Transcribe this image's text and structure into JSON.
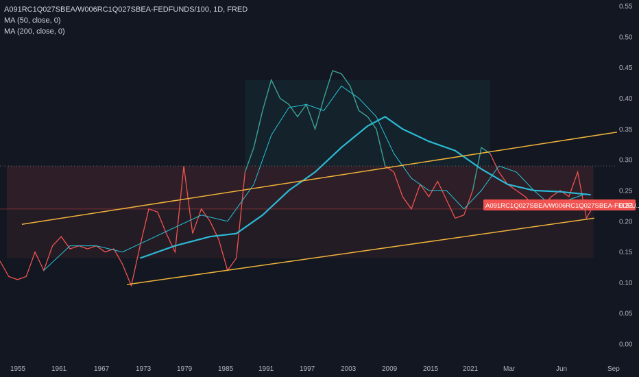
{
  "legend": {
    "symbol": "A091RC1Q027SBEA/W006RC1Q027SBEA-FEDFUNDS/100, 1D, FRED",
    "ma50": "MA (50, close, 0)",
    "ma200": "MA (200, close, 0)"
  },
  "price_label": {
    "name": "A091RC1Q027SBEA/W006RC1Q027SBEA-FEDFU...",
    "value": "0.22"
  },
  "colors": {
    "background": "#131722",
    "series": "#f05350",
    "series_alt": "#26a69a",
    "ma50": "#26c6da",
    "ma200": "#2bbbd6",
    "channel": "#f0b33a",
    "price_label": "#f05350"
  },
  "chart_data": {
    "type": "line",
    "title": "A091RC1Q027SBEA/W006RC1Q027SBEA-FEDFUNDS/100, 1D, FRED",
    "x_ticks": [
      "1955",
      "1961",
      "1967",
      "1973",
      "1979",
      "1985",
      "1991",
      "1997",
      "2003",
      "2009",
      "2015",
      "2021",
      "Mar",
      "Jun",
      "Sep"
    ],
    "y_ticks": [
      "0.55",
      "0.50",
      "0.45",
      "0.40",
      "0.35",
      "0.30",
      "0.25",
      "0.20",
      "0.15",
      "0.10",
      "0.05",
      "0.00"
    ],
    "ylim": [
      -0.02,
      0.56
    ],
    "xlim": [
      1954.0,
      2024.5
    ],
    "series": [
      {
        "name": "A091RC1Q027SBEA/W006RC1Q027SBEA-FEDFUNDS/100",
        "points": [
          [
            1954.0,
            0.135
          ],
          [
            1955.0,
            0.11
          ],
          [
            1956.0,
            0.105
          ],
          [
            1957.0,
            0.11
          ],
          [
            1958.0,
            0.15
          ],
          [
            1959.0,
            0.12
          ],
          [
            1960.0,
            0.16
          ],
          [
            1961.0,
            0.175
          ],
          [
            1962.0,
            0.155
          ],
          [
            1963.0,
            0.16
          ],
          [
            1964.0,
            0.155
          ],
          [
            1965.0,
            0.16
          ],
          [
            1966.0,
            0.15
          ],
          [
            1967.0,
            0.155
          ],
          [
            1968.0,
            0.13
          ],
          [
            1969.0,
            0.095
          ],
          [
            1970.0,
            0.16
          ],
          [
            1971.0,
            0.22
          ],
          [
            1972.0,
            0.215
          ],
          [
            1973.0,
            0.18
          ],
          [
            1974.0,
            0.15
          ],
          [
            1975.0,
            0.29
          ],
          [
            1976.0,
            0.18
          ],
          [
            1977.0,
            0.22
          ],
          [
            1978.0,
            0.2
          ],
          [
            1979.0,
            0.17
          ],
          [
            1980.0,
            0.12
          ],
          [
            1981.0,
            0.14
          ],
          [
            1982.0,
            0.28
          ],
          [
            1983.0,
            0.32
          ],
          [
            1984.0,
            0.38
          ],
          [
            1985.0,
            0.43
          ],
          [
            1986.0,
            0.4
          ],
          [
            1987.0,
            0.39
          ],
          [
            1988.0,
            0.37
          ],
          [
            1989.0,
            0.39
          ],
          [
            1990.0,
            0.35
          ],
          [
            1991.0,
            0.4
          ],
          [
            1992.0,
            0.445
          ],
          [
            1993.0,
            0.44
          ],
          [
            1994.0,
            0.42
          ],
          [
            1995.0,
            0.38
          ],
          [
            1996.0,
            0.37
          ],
          [
            1997.0,
            0.35
          ],
          [
            1998.0,
            0.29
          ],
          [
            1999.0,
            0.28
          ],
          [
            2000.0,
            0.24
          ],
          [
            2001.0,
            0.22
          ],
          [
            2002.0,
            0.26
          ],
          [
            2003.0,
            0.24
          ],
          [
            2004.0,
            0.265
          ],
          [
            2005.0,
            0.235
          ],
          [
            2006.0,
            0.205
          ],
          [
            2007.0,
            0.21
          ],
          [
            2008.0,
            0.25
          ],
          [
            2009.0,
            0.32
          ],
          [
            2010.0,
            0.31
          ],
          [
            2011.0,
            0.28
          ],
          [
            2012.0,
            0.26
          ],
          [
            2013.0,
            0.25
          ],
          [
            2014.0,
            0.24
          ],
          [
            2015.0,
            0.225
          ],
          [
            2016.0,
            0.225
          ],
          [
            2017.0,
            0.24
          ],
          [
            2018.0,
            0.25
          ],
          [
            2019.0,
            0.24
          ],
          [
            2020.0,
            0.28
          ],
          [
            2021.0,
            0.205
          ],
          [
            2021.6,
            0.22
          ]
        ]
      },
      {
        "name": "MA (50, close, 0)",
        "points": [
          [
            1959.0,
            0.12
          ],
          [
            1962.0,
            0.16
          ],
          [
            1965.0,
            0.16
          ],
          [
            1968.0,
            0.15
          ],
          [
            1971.0,
            0.17
          ],
          [
            1974.0,
            0.19
          ],
          [
            1977.0,
            0.21
          ],
          [
            1980.0,
            0.2
          ],
          [
            1983.0,
            0.26
          ],
          [
            1985.0,
            0.34
          ],
          [
            1987.0,
            0.385
          ],
          [
            1989.0,
            0.39
          ],
          [
            1991.0,
            0.38
          ],
          [
            1993.0,
            0.42
          ],
          [
            1995.0,
            0.4
          ],
          [
            1997.0,
            0.37
          ],
          [
            1999.0,
            0.31
          ],
          [
            2001.0,
            0.27
          ],
          [
            2003.0,
            0.25
          ],
          [
            2005.0,
            0.25
          ],
          [
            2007.0,
            0.22
          ],
          [
            2009.0,
            0.25
          ],
          [
            2011.0,
            0.29
          ],
          [
            2013.0,
            0.28
          ],
          [
            2015.0,
            0.25
          ],
          [
            2017.0,
            0.225
          ],
          [
            2019.0,
            0.235
          ],
          [
            2021.0,
            0.245
          ]
        ]
      },
      {
        "name": "MA (200, close, 0)",
        "points": [
          [
            1970.0,
            0.14
          ],
          [
            1974.0,
            0.16
          ],
          [
            1978.0,
            0.175
          ],
          [
            1981.0,
            0.18
          ],
          [
            1984.0,
            0.21
          ],
          [
            1987.0,
            0.25
          ],
          [
            1990.0,
            0.28
          ],
          [
            1993.0,
            0.32
          ],
          [
            1996.0,
            0.355
          ],
          [
            1998.0,
            0.37
          ],
          [
            2000.0,
            0.35
          ],
          [
            2003.0,
            0.33
          ],
          [
            2006.0,
            0.315
          ],
          [
            2009.0,
            0.285
          ],
          [
            2012.0,
            0.26
          ],
          [
            2015.0,
            0.25
          ],
          [
            2018.0,
            0.248
          ],
          [
            2021.5,
            0.243
          ]
        ]
      }
    ],
    "channel_lines": [
      {
        "from": [
          1956.5,
          0.195
        ],
        "to": [
          2024.5,
          0.345
        ]
      },
      {
        "from": [
          1968.5,
          0.097
        ],
        "to": [
          2021.9,
          0.205
        ]
      }
    ]
  }
}
